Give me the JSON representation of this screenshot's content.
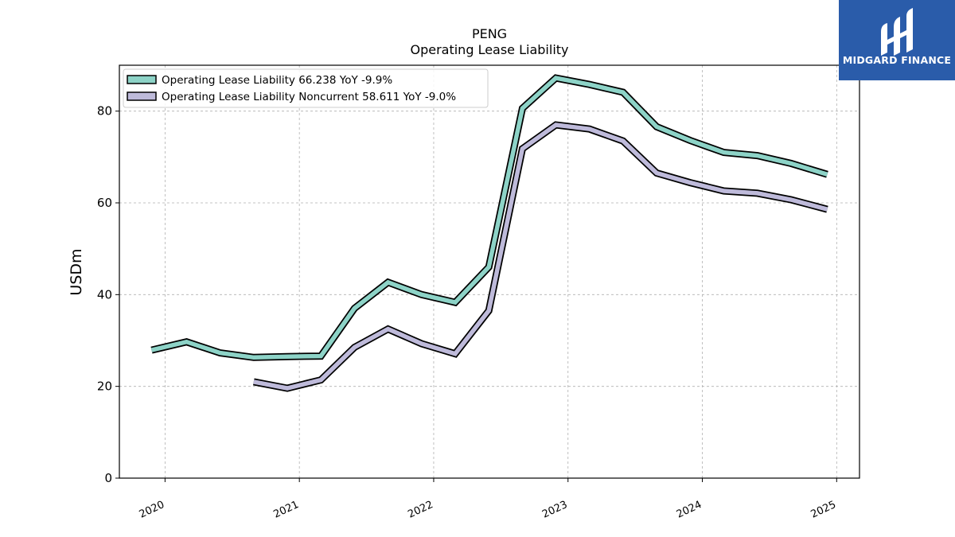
{
  "chart_data": {
    "type": "line",
    "title": "PENG",
    "subtitle": "Operating Lease Liability",
    "ylabel": "USDm",
    "xlabel": "",
    "ylim": [
      0,
      90
    ],
    "xlim": [
      2019.66,
      2025.17
    ],
    "y_ticks": [
      0,
      20,
      40,
      60,
      80
    ],
    "x_ticks": [
      2020,
      2021,
      2022,
      2023,
      2024,
      2025
    ],
    "x_tick_labels": [
      "2020",
      "2021",
      "2022",
      "2023",
      "2024",
      "2025"
    ],
    "grid": true,
    "legend_position": "top-left",
    "series": [
      {
        "name": "Operating Lease Liability",
        "legend_label": "Operating Lease Liability  66.238 YoY -9.9%",
        "color": "#8dd3c7",
        "x": [
          2019.9,
          2020.16,
          2020.41,
          2020.66,
          2020.91,
          2021.16,
          2021.41,
          2021.66,
          2021.91,
          2022.16,
          2022.41,
          2022.66,
          2022.91,
          2023.16,
          2023.41,
          2023.66,
          2023.91,
          2024.16,
          2024.41,
          2024.66,
          2024.93
        ],
        "values": [
          27.9,
          29.7,
          27.3,
          26.3,
          26.5,
          26.6,
          37.0,
          42.7,
          40.0,
          38.3,
          46.0,
          80.6,
          87.2,
          85.8,
          84.1,
          76.6,
          73.6,
          71.0,
          70.3,
          68.6,
          66.2
        ]
      },
      {
        "name": "Operating Lease Liability Noncurrent",
        "legend_label": "Operating Lease Liability Noncurrent  58.611 YoY -9.0%",
        "color": "#bebada",
        "x": [
          2020.66,
          2020.91,
          2021.16,
          2021.41,
          2021.66,
          2021.91,
          2022.16,
          2022.41,
          2022.66,
          2022.91,
          2023.16,
          2023.41,
          2023.66,
          2023.91,
          2024.16,
          2024.41,
          2024.66,
          2024.93
        ],
        "values": [
          21.0,
          19.6,
          21.4,
          28.5,
          32.5,
          29.3,
          27.1,
          36.5,
          71.8,
          77.0,
          76.1,
          73.5,
          66.5,
          64.4,
          62.6,
          62.1,
          60.7,
          58.6
        ]
      }
    ]
  },
  "logo": {
    "text": "MIDGARD FINANCE",
    "background": "#2a5caa"
  }
}
